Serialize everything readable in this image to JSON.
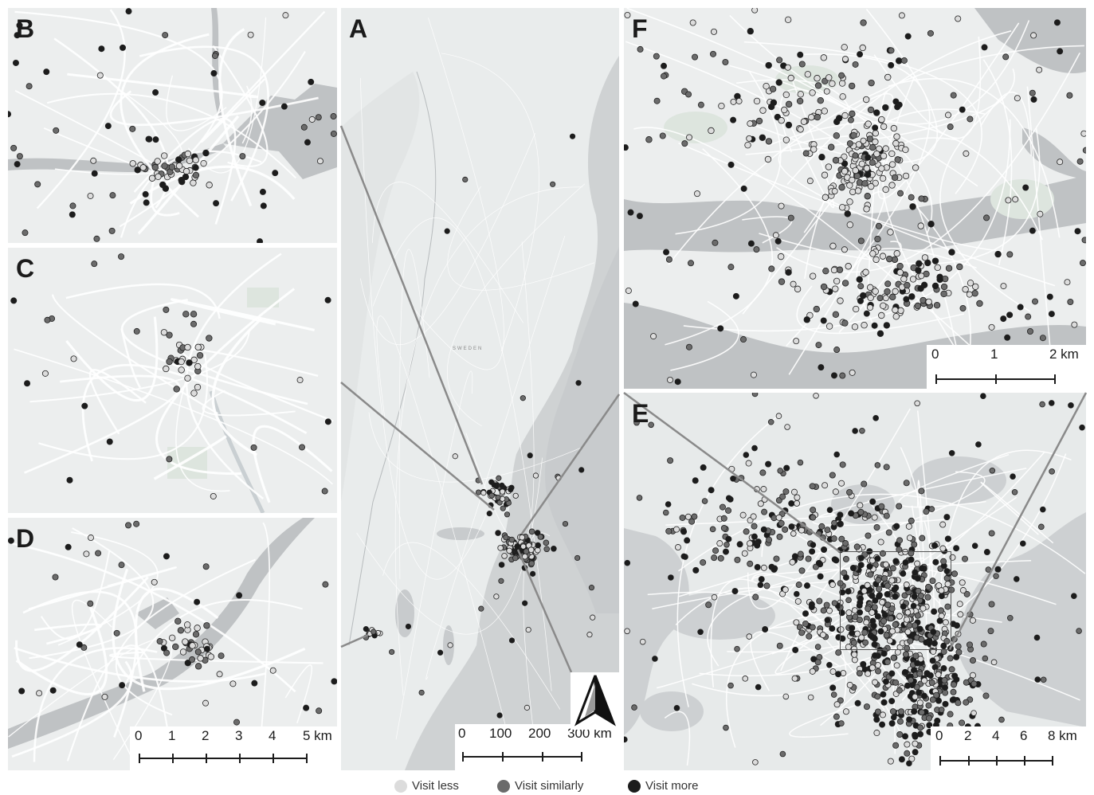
{
  "panels": {
    "A": {
      "label": "A"
    },
    "B": {
      "label": "B"
    },
    "C": {
      "label": "C"
    },
    "D": {
      "label": "D"
    },
    "E": {
      "label": "E"
    },
    "F": {
      "label": "F"
    }
  },
  "map_text": {
    "country": "SWEDEN"
  },
  "scalebars": {
    "D": {
      "ticks": [
        "0",
        "1",
        "2",
        "3",
        "4",
        "5 km"
      ]
    },
    "A": {
      "ticks": [
        "0",
        "100",
        "200",
        "300 km"
      ]
    },
    "F": {
      "ticks": [
        "0",
        "1",
        "2 km"
      ]
    },
    "E": {
      "ticks": [
        "0",
        "2",
        "4",
        "6",
        "8 km"
      ]
    }
  },
  "legend": {
    "items": [
      {
        "label": "Visit less",
        "color": "#d9d9d9"
      },
      {
        "label": "Visit similarly",
        "color": "#6e6e6e"
      },
      {
        "label": "Visit more",
        "color": "#1a1a1a"
      }
    ]
  },
  "colors": {
    "land": "#eceeee",
    "water": "#bfc2c4",
    "road": "#ffffff",
    "park": "#dde5de",
    "less": "#dcdcdc",
    "similar": "#6b6b6b",
    "more": "#1c1c1c"
  }
}
